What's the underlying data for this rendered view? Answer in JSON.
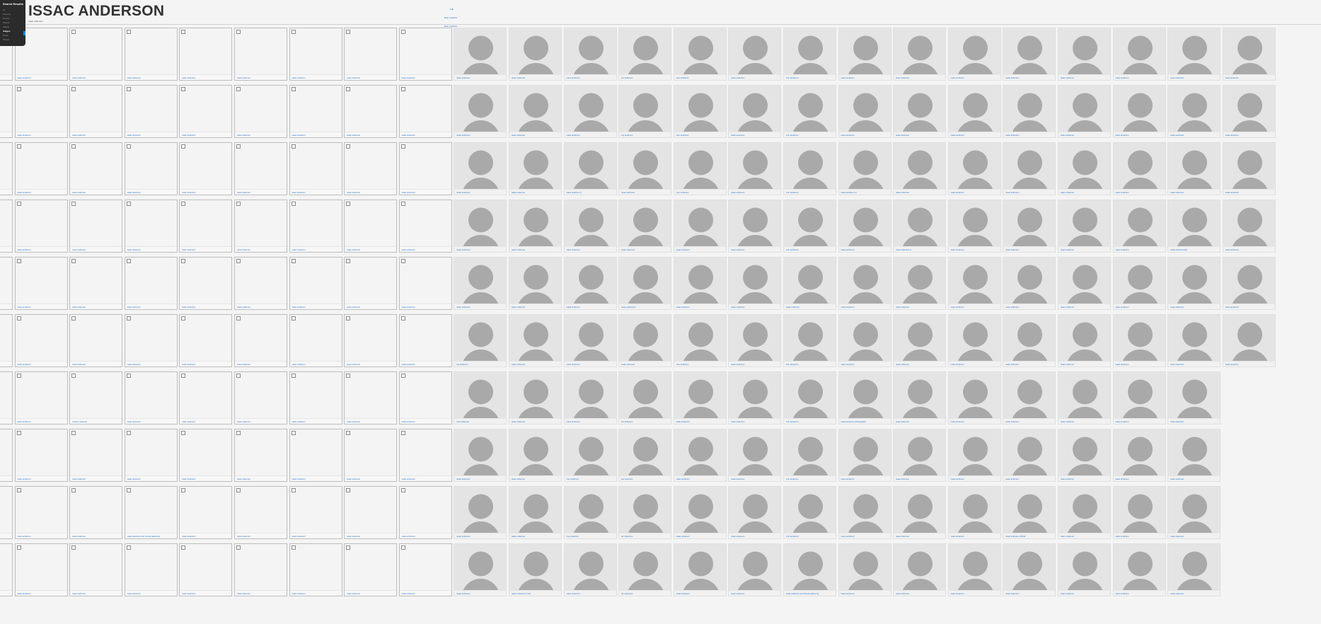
{
  "menu": {
    "title": "Search Results",
    "items": [
      {
        "label": "All",
        "active": false
      },
      {
        "label": "Persons",
        "active": false
      },
      {
        "label": "Groups",
        "active": false
      },
      {
        "label": "Photos",
        "active": false
      },
      {
        "label": "Videos",
        "active": false
      },
      {
        "label": "Images",
        "active": true
      },
      {
        "label": "Posts",
        "active": false
      },
      {
        "label": "Places",
        "active": false
      }
    ]
  },
  "header": {
    "title": "ISSAC ANDERSON",
    "subtitle": "Isaac Anderson",
    "links": [
      "Full",
      "Best matches",
      "Best matches"
    ]
  },
  "grid": {
    "columns": 24,
    "placeholder_columns": 9,
    "rows_full": 6,
    "rows_total": 10,
    "short_row_columns": 23,
    "default_name": "isaac anderson",
    "variants": [
      {
        "row": 0,
        "col": 12,
        "name": "ian anderson"
      },
      {
        "row": 0,
        "col": 13,
        "name": "ivan anderson"
      },
      {
        "row": 0,
        "col": 15,
        "name": "irvin anderson"
      },
      {
        "row": 1,
        "col": 12,
        "name": "ray anderson"
      },
      {
        "row": 1,
        "col": 13,
        "name": "ivan anderson"
      },
      {
        "row": 1,
        "col": 15,
        "name": "irvin anderson"
      },
      {
        "row": 2,
        "col": 11,
        "name": "isaac anderson jr"
      },
      {
        "row": 2,
        "col": 13,
        "name": "ivan anderson"
      },
      {
        "row": 2,
        "col": 15,
        "name": "irvin anderson"
      },
      {
        "row": 2,
        "col": 16,
        "name": "isaac anderson sr"
      },
      {
        "row": 2,
        "col": 21,
        "name": "isaac andersen"
      },
      {
        "row": 3,
        "col": 15,
        "name": "irvin anderson"
      },
      {
        "row": 3,
        "col": 17,
        "name": "isaac anderson sr"
      },
      {
        "row": 3,
        "col": 22,
        "name": "isaac andersonville"
      },
      {
        "row": 4,
        "col": 11,
        "name": "isaak anderson"
      },
      {
        "row": 4,
        "col": 12,
        "name": "isaac andersonn"
      },
      {
        "row": 5,
        "col": 9,
        "name": "isa anderson"
      },
      {
        "row": 5,
        "col": 13,
        "name": "ivan anderson"
      },
      {
        "row": 5,
        "col": 15,
        "name": "irvin anderson"
      },
      {
        "row": 6,
        "col": 2,
        "name": "andrew isaacson"
      },
      {
        "row": 6,
        "col": 9,
        "name": "ivan anderson"
      },
      {
        "row": 6,
        "col": 12,
        "name": "ian anderson"
      },
      {
        "row": 6,
        "col": 15,
        "name": "irvin anderson"
      },
      {
        "row": 6,
        "col": 16,
        "name": "isaac anderson photography"
      },
      {
        "row": 7,
        "col": 11,
        "name": "issy anderson"
      },
      {
        "row": 7,
        "col": 12,
        "name": "ian anderson"
      },
      {
        "row": 7,
        "col": 15,
        "name": "irvin anderson"
      },
      {
        "row": 8,
        "col": 3,
        "name": "isaac anderson and friends gathering"
      },
      {
        "row": 8,
        "col": 11,
        "name": "issy anderson"
      },
      {
        "row": 8,
        "col": 12,
        "name": "ian anderson"
      },
      {
        "row": 8,
        "col": 15,
        "name": "irvin anderson"
      },
      {
        "row": 8,
        "col": 19,
        "name": "isaac anderson official"
      },
      {
        "row": 9,
        "col": 10,
        "name": "isaac anderson music"
      },
      {
        "row": 9,
        "col": 12,
        "name": "ian anderson"
      },
      {
        "row": 9,
        "col": 15,
        "name": "isaac anderson and friends gathering"
      }
    ]
  }
}
